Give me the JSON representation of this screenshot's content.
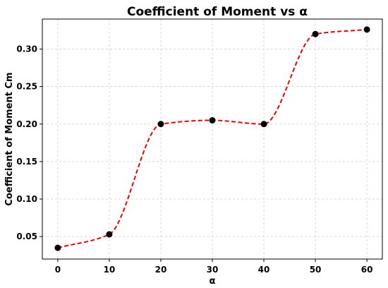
{
  "chart_data": {
    "type": "line",
    "title": "Coefficient of Moment vs α",
    "xlabel": "α",
    "ylabel": "Coefficient of Moment Cm",
    "x": [
      0,
      10,
      20,
      30,
      40,
      50,
      60
    ],
    "y": [
      0.035,
      0.053,
      0.2,
      0.205,
      0.2,
      0.32,
      0.326
    ],
    "xlim": [
      -3,
      63
    ],
    "ylim": [
      0.02,
      0.34
    ],
    "xticks": [
      0,
      10,
      20,
      30,
      40,
      50,
      60
    ],
    "yticks": [
      0.05,
      0.1,
      0.15,
      0.2,
      0.25,
      0.3
    ],
    "grid": true,
    "line_color": "#e8000b",
    "line_style": "dashed",
    "marker_color": "#000000",
    "curve": "smooth"
  }
}
